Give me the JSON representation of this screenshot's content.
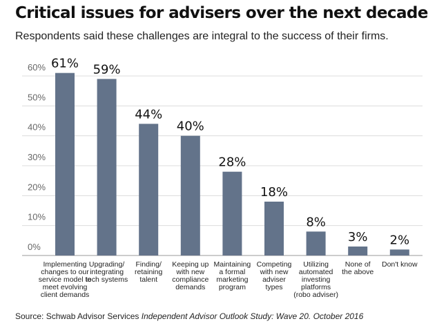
{
  "header": {
    "title": "Critical issues for advisers over the next decade",
    "subtitle": "Respondents said these challenges are integral to the success of their firms."
  },
  "footer": {
    "source_prefix": "Source: Schwab Advisor Services ",
    "source_study": "Independent Advisor Outlook Study: Wave 20. October 2016"
  },
  "chart_data": {
    "type": "bar",
    "title": "Critical issues for advisers over the next decade",
    "xlabel": "",
    "ylabel": "",
    "ylim": [
      0,
      60
    ],
    "yticks": [
      "0%",
      "10%",
      "20%",
      "30%",
      "40%",
      "50%",
      "60%"
    ],
    "grid": true,
    "legend": "none",
    "bar_color": "#63738a",
    "categories": [
      [
        "Implementing",
        "changes to our",
        "service model to",
        "meet evolving",
        "client demands"
      ],
      [
        "Upgrading/",
        "integrating",
        "tech systems"
      ],
      [
        "Finding/",
        "retaining",
        "talent"
      ],
      [
        "Keeping up",
        "with new",
        "compliance",
        "demands"
      ],
      [
        "Maintaining",
        "a formal",
        "marketing",
        "program"
      ],
      [
        "Competing",
        "with new",
        "adviser",
        "types"
      ],
      [
        "Utilizing",
        "automated",
        "investing",
        "platforms",
        "(robo adviser)"
      ],
      [
        "None of",
        "the above"
      ],
      [
        "Don't know"
      ]
    ],
    "values": [
      61,
      59,
      44,
      40,
      28,
      18,
      8,
      3,
      2
    ],
    "value_labels": [
      "61%",
      "59%",
      "44%",
      "40%",
      "28%",
      "18%",
      "8%",
      "3%",
      "2%"
    ]
  }
}
